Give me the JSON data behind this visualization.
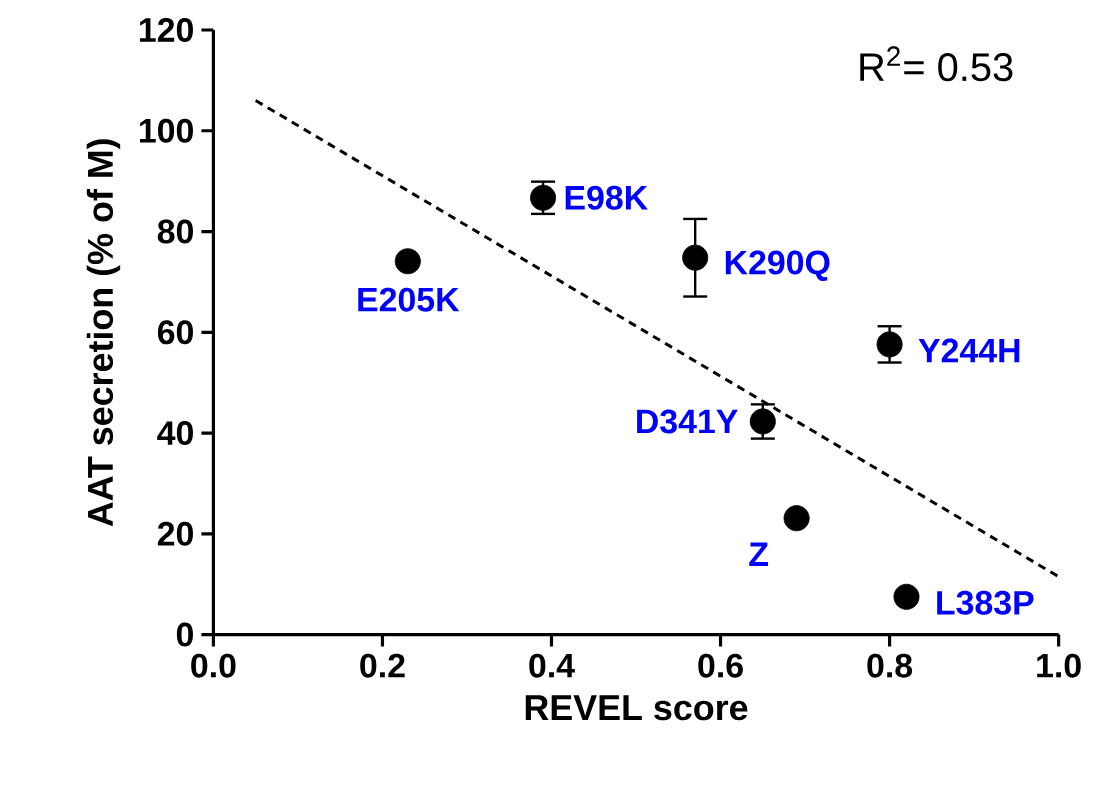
{
  "chart_data": {
    "type": "scatter",
    "xlabel": "REVEL score",
    "ylabel": "AAT secretion (% of M)",
    "xlim": [
      0,
      1
    ],
    "ylim": [
      0,
      120
    ],
    "xticks": [
      {
        "value": 0,
        "label": "0.0"
      },
      {
        "value": 0.2,
        "label": "0.2"
      },
      {
        "value": 0.4,
        "label": "0.4"
      },
      {
        "value": 0.6,
        "label": "0.6"
      },
      {
        "value": 0.8,
        "label": "0.8"
      },
      {
        "value": 1,
        "label": "1.0"
      }
    ],
    "yticks": [
      0,
      20,
      40,
      60,
      80,
      100,
      120
    ],
    "grid": false,
    "series": [
      {
        "marker": "circle",
        "color": "#000000",
        "x": [
          0.39,
          0.57,
          0.23,
          0.8,
          0.65,
          0.69,
          0.82
        ],
        "values": [
          86.7,
          74.8,
          74.1,
          57.6,
          42.3,
          23.1,
          7.5
        ],
        "errors": [
          3.2,
          7.7,
          null,
          3.6,
          3.4,
          null,
          null
        ]
      },
      {
        "type": "line",
        "marker": "none",
        "color": "#000000",
        "line_style": "dashed",
        "x": [
          0.05,
          1.0
        ],
        "values": [
          106,
          11.5
        ]
      }
    ],
    "annotations": [
      "R$^{2}$= 0.53",
      {
        "text": "E98K",
        "x": 0.39,
        "y": 86.7
      },
      {
        "text": "K290Q",
        "x": 0.57,
        "y": 74.8
      },
      {
        "text": "E205K",
        "x": 0.23,
        "y": 74.1
      },
      {
        "text": "Y244H",
        "x": 0.8,
        "y": 57.6
      },
      {
        "text": "D341Y",
        "x": 0.65,
        "y": 42.3
      },
      {
        "text": "Z",
        "x": 0.69,
        "y": 23.1
      },
      {
        "text": "L383P",
        "x": 0.82,
        "y": 7.5
      }
    ]
  }
}
